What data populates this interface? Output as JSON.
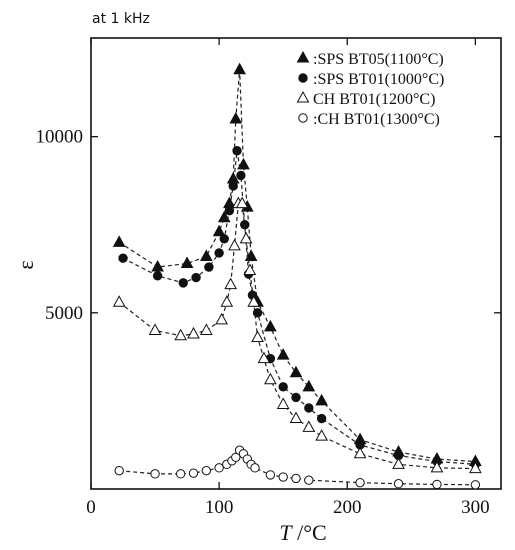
{
  "chart_data": {
    "type": "scatter",
    "annotation": "at 1 kHz",
    "xlabel_var": "T",
    "xlabel_unit": " /°C",
    "ylabel": "ε",
    "xlim": [
      0,
      320
    ],
    "ylim": [
      0,
      12800
    ],
    "x_ticks": [
      0,
      100,
      200,
      300
    ],
    "y_ticks": [
      5000,
      10000
    ],
    "grid": false,
    "legend_position": "top-right",
    "series": [
      {
        "name": "SPS BT05(1100°C)",
        "legend_label": ":SPS BT05(1100°C)",
        "marker": "filled-triangle",
        "x": [
          22,
          52,
          75,
          90,
          100,
          104,
          108,
          111,
          113,
          116,
          119,
          122,
          125,
          130,
          140,
          150,
          160,
          170,
          180,
          210,
          240,
          270,
          300
        ],
        "y": [
          7000,
          6300,
          6400,
          6600,
          7300,
          7700,
          8100,
          8800,
          10500,
          11900,
          9200,
          8000,
          6600,
          5300,
          4600,
          3800,
          3300,
          2900,
          2500,
          1400,
          1050,
          850,
          780
        ]
      },
      {
        "name": "SPS BT01(1000°C)",
        "legend_label": ":SPS BT01(1000°C)",
        "marker": "filled-circle",
        "x": [
          25,
          52,
          72,
          82,
          92,
          100,
          104,
          108,
          111,
          114,
          117,
          120,
          123,
          126,
          130,
          140,
          150,
          160,
          170,
          180,
          210,
          240,
          270,
          300
        ],
        "y": [
          6550,
          6050,
          5850,
          6000,
          6300,
          6700,
          7100,
          7900,
          8600,
          9600,
          8900,
          7500,
          6100,
          5500,
          5000,
          3700,
          2900,
          2600,
          2300,
          2000,
          1250,
          950,
          780,
          700
        ]
      },
      {
        "name": "CH BT01(1200°C)",
        "legend_label": "CH BT01(1200°C)",
        "marker": "open-triangle",
        "x": [
          22,
          50,
          70,
          80,
          90,
          102,
          106,
          109,
          112,
          115,
          118,
          121,
          124,
          127,
          130,
          135,
          140,
          150,
          160,
          170,
          180,
          210,
          240,
          270,
          300
        ],
        "y": [
          5300,
          4500,
          4350,
          4400,
          4500,
          4800,
          5300,
          5800,
          6900,
          8100,
          8100,
          7100,
          6200,
          5300,
          4300,
          3700,
          3100,
          2400,
          2000,
          1750,
          1500,
          1000,
          700,
          600,
          580
        ]
      },
      {
        "name": "CH BT01(1300°C)",
        "legend_label": ":CH BT01(1300°C)",
        "marker": "open-circle",
        "x": [
          22,
          50,
          70,
          80,
          90,
          100,
          106,
          110,
          113,
          116,
          119,
          122,
          125,
          128,
          140,
          150,
          160,
          170,
          210,
          240,
          270,
          300
        ],
        "y": [
          520,
          430,
          430,
          450,
          520,
          600,
          700,
          800,
          900,
          1100,
          1000,
          850,
          700,
          600,
          400,
          340,
          300,
          250,
          180,
          150,
          130,
          120
        ]
      }
    ]
  }
}
